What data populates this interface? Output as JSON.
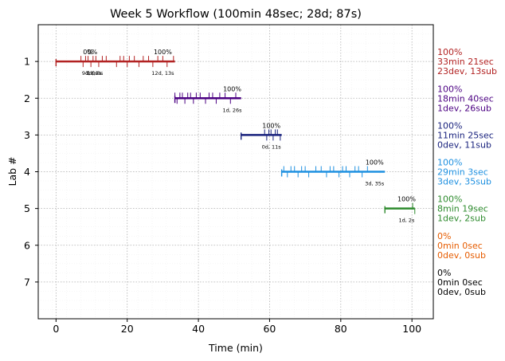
{
  "chart_data": {
    "type": "timeline",
    "title": "Week 5 Workflow (100min 48sec; 28d; 87s)",
    "xlabel": "Time (min)",
    "ylabel": "Lab #",
    "xlim": [
      -5,
      106
    ],
    "ylim": [
      8,
      0
    ],
    "xticks": [
      0,
      20,
      40,
      60,
      80,
      100
    ],
    "yticks": [
      1,
      2,
      3,
      4,
      5,
      6,
      7
    ],
    "grid": true,
    "labs": [
      {
        "lab": 1,
        "color": "#b22222",
        "start": 0,
        "end": 33.4,
        "marks": [
          7,
          7.6,
          8.3,
          9,
          9.8,
          10.4,
          11.2,
          12,
          13,
          14.1,
          17,
          18,
          19,
          20,
          20.6,
          22,
          23.3,
          24.5,
          26,
          27.2,
          28.6,
          30,
          31.2,
          33
        ],
        "side_label": [
          "100%",
          "33min 21sec",
          "23dev, 13sub"
        ],
        "annotations": [
          {
            "x": 9,
            "text": "0%",
            "pos": "above"
          },
          {
            "x": 10.2,
            "text": "0%",
            "pos": "above"
          },
          {
            "x": 30,
            "text": "100%",
            "pos": "above"
          },
          {
            "x": 9.5,
            "text": "9d, 0s",
            "pos": "below"
          },
          {
            "x": 10.5,
            "text": "1d, 0s",
            "pos": "below"
          },
          {
            "x": 11,
            "text": "1d, 0s",
            "pos": "below"
          },
          {
            "x": 30,
            "text": "12d, 13s",
            "pos": "below"
          }
        ]
      },
      {
        "lab": 2,
        "color": "#4b0082",
        "start": 33.4,
        "end": 52,
        "marks": [
          33.4,
          34,
          34.8,
          35.5,
          36.2,
          37,
          37.8,
          38.6,
          39.4,
          40.5,
          42,
          43,
          44,
          45,
          46,
          47.5,
          49,
          50.5
        ],
        "side_label": [
          "100%",
          "18min 40sec",
          "1dev, 26sub"
        ],
        "annotations": [
          {
            "x": 49.5,
            "text": "100%",
            "pos": "above"
          },
          {
            "x": 49.5,
            "text": "1d, 26s",
            "pos": "below"
          }
        ]
      },
      {
        "lab": 3,
        "color": "#1a237e",
        "start": 52,
        "end": 63.4,
        "marks": [
          58.6,
          59.2,
          59.8,
          60.4,
          61,
          61.6,
          62.2,
          63
        ],
        "side_label": [
          "100%",
          "11min 25sec",
          "0dev, 11sub"
        ],
        "annotations": [
          {
            "x": 60.5,
            "text": "100%",
            "pos": "above"
          },
          {
            "x": 60.5,
            "text": "0d, 11s",
            "pos": "below"
          }
        ]
      },
      {
        "lab": 4,
        "color": "#1e90e0",
        "start": 63.4,
        "end": 92.4,
        "marks": [
          64,
          65,
          66,
          67,
          68,
          69,
          70,
          71,
          73,
          74.5,
          76,
          77,
          78,
          79.5,
          80.5,
          81.5,
          82.5,
          84,
          85,
          86,
          87.5
        ],
        "side_label": [
          "100%",
          "29min 3sec",
          "3dev, 35sub"
        ],
        "annotations": [
          {
            "x": 89.5,
            "text": "100%",
            "pos": "above"
          },
          {
            "x": 89.5,
            "text": "3d, 35s",
            "pos": "below"
          }
        ]
      },
      {
        "lab": 5,
        "color": "#2e8b2e",
        "start": 92.4,
        "end": 100.8,
        "marks": [
          100.2,
          100.8
        ],
        "side_label": [
          "100%",
          "8min 19sec",
          "1dev, 2sub"
        ],
        "annotations": [
          {
            "x": 98.5,
            "text": "100%",
            "pos": "above"
          },
          {
            "x": 98.5,
            "text": "1d, 2s",
            "pos": "below"
          }
        ]
      },
      {
        "lab": 6,
        "color": "#e65c00",
        "start": null,
        "end": null,
        "marks": [],
        "side_label": [
          "0%",
          "0min 0sec",
          "0dev, 0sub"
        ],
        "annotations": []
      },
      {
        "lab": 7,
        "color": "#000000",
        "start": null,
        "end": null,
        "marks": [],
        "side_label": [
          "0%",
          "0min 0sec",
          "0dev, 0sub"
        ],
        "annotations": []
      }
    ]
  }
}
